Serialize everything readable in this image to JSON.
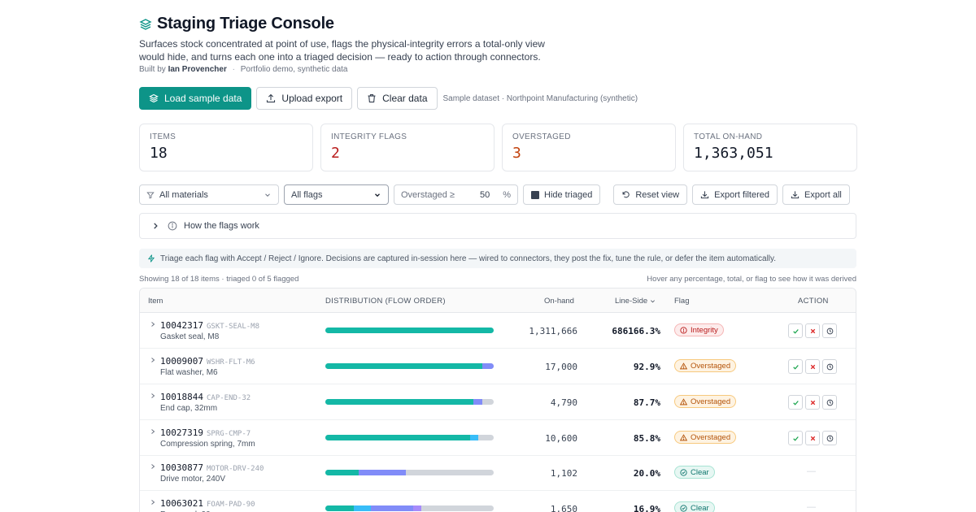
{
  "header": {
    "title": "Staging Triage Console",
    "description": "Surfaces stock concentrated at point of use, flags the physical-integrity errors a total-only view would hide, and turns each one into a triaged decision — ready to action through connectors.",
    "byline_prefix": "Built by",
    "author": "Ian Provencher",
    "byline_suffix": "Portfolio demo, synthetic data"
  },
  "actions": {
    "load_label": "Load sample data",
    "upload_label": "Upload export",
    "clear_label": "Clear data",
    "dataset_note": "Sample dataset · Northpoint Manufacturing (synthetic)"
  },
  "stats": [
    {
      "label": "ITEMS",
      "value": "18"
    },
    {
      "label": "INTEGRITY FLAGS",
      "value": "2"
    },
    {
      "label": "OVERSTAGED",
      "value": "3"
    },
    {
      "label": "TOTAL ON-HAND",
      "value": "1,363,051"
    }
  ],
  "filters": {
    "materials": "All materials",
    "flags": "All flags",
    "overstaged_label": "Overstaged ≥",
    "overstaged_value": "50",
    "overstaged_unit": "%",
    "hide_triaged": "Hide triaged",
    "reset": "Reset view",
    "export_filtered": "Export filtered",
    "export_all": "Export all"
  },
  "how_flags": "How the flags work",
  "info": "Triage each flag with Accept / Reject / Ignore. Decisions are captured in-session here — wired to connectors, they post the fix, tune the rule, or defer the item automatically.",
  "meta": {
    "showing": "Showing 18 of 18 items · triaged 0 of 5 flagged",
    "hint": "Hover any percentage, total, or flag to see how it was derived"
  },
  "table": {
    "headers": {
      "item": "Item",
      "distribution": "DISTRIBUTION (FLOW ORDER)",
      "onhand": "On-hand",
      "lineside": "Line-Side",
      "flag": "Flag",
      "action": "ACTION"
    },
    "colors": {
      "teal": "#14b8a6",
      "purple": "#818cf8",
      "blue": "#38bdf8",
      "gray": "#d1d5db"
    },
    "rows": [
      {
        "id": "10042317",
        "sku": "GSKT-SEAL-M8",
        "name": "Gasket seal, M8",
        "onhand": "1,311,666",
        "lineside": "686166.3%",
        "flag": "Integrity",
        "flag_type": "integrity",
        "segments": [
          {
            "c": "#14b8a6",
            "w": 100
          }
        ]
      },
      {
        "id": "10009007",
        "sku": "WSHR-FLT-M6",
        "name": "Flat washer, M6",
        "onhand": "17,000",
        "lineside": "92.9%",
        "flag": "Overstaged",
        "flag_type": "overstaged",
        "segments": [
          {
            "c": "#14b8a6",
            "w": 93
          },
          {
            "c": "#818cf8",
            "w": 7
          }
        ]
      },
      {
        "id": "10018844",
        "sku": "CAP-END-32",
        "name": "End cap, 32mm",
        "onhand": "4,790",
        "lineside": "87.7%",
        "flag": "Overstaged",
        "flag_type": "overstaged",
        "segments": [
          {
            "c": "#14b8a6",
            "w": 88
          },
          {
            "c": "#818cf8",
            "w": 5
          }
        ]
      },
      {
        "id": "10027319",
        "sku": "SPRG-CMP-7",
        "name": "Compression spring, 7mm",
        "onhand": "10,600",
        "lineside": "85.8%",
        "flag": "Overstaged",
        "flag_type": "overstaged",
        "segments": [
          {
            "c": "#14b8a6",
            "w": 86
          },
          {
            "c": "#38bdf8",
            "w": 5
          }
        ]
      },
      {
        "id": "10030877",
        "sku": "MOTOR-DRV-240",
        "name": "Drive motor, 240V",
        "onhand": "1,102",
        "lineside": "20.0%",
        "flag": "Clear",
        "flag_type": "clear",
        "segments": [
          {
            "c": "#14b8a6",
            "w": 20
          },
          {
            "c": "#818cf8",
            "w": 28
          }
        ]
      },
      {
        "id": "10063021",
        "sku": "FOAM-PAD-90",
        "name": "Foam pad, 90mm",
        "onhand": "1,650",
        "lineside": "16.9%",
        "flag": "Clear",
        "flag_type": "clear",
        "segments": [
          {
            "c": "#14b8a6",
            "w": 17
          },
          {
            "c": "#38bdf8",
            "w": 10
          },
          {
            "c": "#818cf8",
            "w": 25
          },
          {
            "c": "#a78bfa",
            "w": 5
          }
        ]
      }
    ]
  }
}
